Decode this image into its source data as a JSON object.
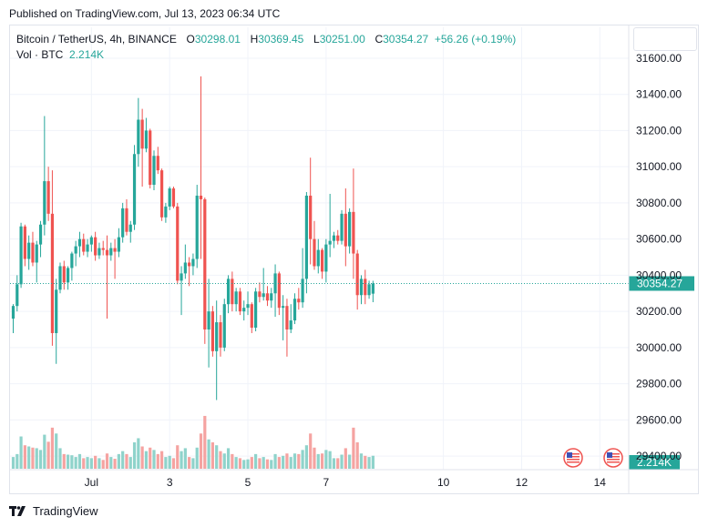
{
  "header": {
    "published": "Published on TradingView.com, Jul 13, 2023 06:34 UTC"
  },
  "legend": {
    "symbol": "Bitcoin / TetherUS, 4h, BINANCE",
    "open_label": "O",
    "open": "30298.01",
    "high_label": "H",
    "high": "30369.45",
    "low_label": "L",
    "low": "30251.00",
    "close_label": "C",
    "close": "30354.27",
    "change": "+56.26 (+0.19%)",
    "vol_label": "Vol · BTC",
    "vol_value": "2.214K"
  },
  "colors": {
    "up": "#26a69a",
    "down": "#ef5350",
    "up_volume": "#8fd3cb",
    "down_volume": "#f5a3a1"
  },
  "footer": {
    "brand": "TradingView",
    "brand_icon": "tradingview-logo-icon"
  },
  "chart_data": {
    "type": "candlestick",
    "title": "Bitcoin / TetherUS, 4h, BINANCE",
    "price_axis": {
      "ticks": [
        "31600.00",
        "31400.00",
        "31200.00",
        "31000.00",
        "30800.00",
        "30600.00",
        "30400.00",
        "30200.00",
        "30000.00",
        "29800.00",
        "29600.00",
        "29400.00"
      ],
      "range": [
        29330,
        31640
      ],
      "last_price_label": "30354.27",
      "last_price": 30354.27
    },
    "time_axis": {
      "labels": [
        "Jul",
        "3",
        "5",
        "7",
        "10",
        "12",
        "14"
      ],
      "label_candle_index": [
        20,
        40,
        60,
        80,
        110,
        130,
        150
      ]
    },
    "volume_axis": {
      "last_volume_label": "2.214K",
      "max_volume_k": 20
    },
    "event_icons": [
      "us-flag-icon",
      "us-flag-icon"
    ],
    "candles": [
      {
        "o": 30160,
        "h": 30240,
        "l": 30080,
        "c": 30230,
        "v": 2.0
      },
      {
        "o": 30230,
        "h": 30400,
        "l": 30200,
        "c": 30350,
        "v": 2.5
      },
      {
        "o": 30350,
        "h": 30690,
        "l": 30330,
        "c": 30670,
        "v": 5.5
      },
      {
        "o": 30670,
        "h": 30680,
        "l": 30450,
        "c": 30490,
        "v": 4.0
      },
      {
        "o": 30490,
        "h": 30620,
        "l": 30430,
        "c": 30580,
        "v": 3.8
      },
      {
        "o": 30580,
        "h": 30640,
        "l": 30450,
        "c": 30470,
        "v": 3.6
      },
      {
        "o": 30470,
        "h": 30590,
        "l": 30360,
        "c": 30570,
        "v": 3.5
      },
      {
        "o": 30570,
        "h": 30700,
        "l": 30500,
        "c": 30680,
        "v": 3.2
      },
      {
        "o": 30680,
        "h": 31280,
        "l": 30620,
        "c": 30920,
        "v": 5.8
      },
      {
        "o": 30920,
        "h": 31000,
        "l": 30700,
        "c": 30740,
        "v": 4.6
      },
      {
        "o": 30740,
        "h": 30980,
        "l": 30010,
        "c": 30080,
        "v": 7.0
      },
      {
        "o": 30080,
        "h": 30380,
        "l": 29910,
        "c": 30320,
        "v": 6.0
      },
      {
        "o": 30320,
        "h": 30470,
        "l": 30300,
        "c": 30450,
        "v": 3.5
      },
      {
        "o": 30450,
        "h": 30480,
        "l": 30320,
        "c": 30360,
        "v": 2.5
      },
      {
        "o": 30360,
        "h": 30450,
        "l": 30320,
        "c": 30440,
        "v": 2.4
      },
      {
        "o": 30440,
        "h": 30530,
        "l": 30370,
        "c": 30520,
        "v": 2.3
      },
      {
        "o": 30520,
        "h": 30590,
        "l": 30450,
        "c": 30560,
        "v": 2.0
      },
      {
        "o": 30560,
        "h": 30640,
        "l": 30500,
        "c": 30600,
        "v": 2.5
      },
      {
        "o": 30600,
        "h": 30630,
        "l": 30510,
        "c": 30530,
        "v": 1.8
      },
      {
        "o": 30530,
        "h": 30600,
        "l": 30500,
        "c": 30570,
        "v": 2.0
      },
      {
        "o": 30570,
        "h": 30620,
        "l": 30530,
        "c": 30610,
        "v": 1.8
      },
      {
        "o": 30610,
        "h": 30640,
        "l": 30480,
        "c": 30510,
        "v": 2.2
      },
      {
        "o": 30510,
        "h": 30580,
        "l": 30490,
        "c": 30550,
        "v": 1.8
      },
      {
        "o": 30550,
        "h": 30590,
        "l": 30510,
        "c": 30540,
        "v": 1.5
      },
      {
        "o": 30540,
        "h": 30620,
        "l": 30160,
        "c": 30510,
        "v": 2.6
      },
      {
        "o": 30510,
        "h": 30580,
        "l": 30480,
        "c": 30550,
        "v": 2.0
      },
      {
        "o": 30550,
        "h": 30600,
        "l": 30380,
        "c": 30530,
        "v": 1.7
      },
      {
        "o": 30530,
        "h": 30660,
        "l": 30500,
        "c": 30610,
        "v": 2.5
      },
      {
        "o": 30610,
        "h": 30800,
        "l": 30580,
        "c": 30770,
        "v": 3.0
      },
      {
        "o": 30770,
        "h": 30820,
        "l": 30620,
        "c": 30640,
        "v": 2.5
      },
      {
        "o": 30640,
        "h": 30700,
        "l": 30580,
        "c": 30680,
        "v": 2.0
      },
      {
        "o": 30680,
        "h": 31120,
        "l": 30650,
        "c": 31070,
        "v": 4.5
      },
      {
        "o": 31070,
        "h": 31380,
        "l": 31000,
        "c": 31260,
        "v": 5.2
      },
      {
        "o": 31260,
        "h": 31320,
        "l": 30890,
        "c": 31100,
        "v": 3.8
      },
      {
        "o": 31100,
        "h": 31270,
        "l": 31080,
        "c": 31200,
        "v": 3.0
      },
      {
        "o": 31200,
        "h": 31210,
        "l": 30880,
        "c": 30900,
        "v": 3.6
      },
      {
        "o": 30900,
        "h": 31090,
        "l": 30870,
        "c": 31060,
        "v": 3.2
      },
      {
        "o": 31060,
        "h": 31110,
        "l": 30960,
        "c": 30980,
        "v": 2.5
      },
      {
        "o": 30980,
        "h": 30990,
        "l": 30700,
        "c": 30720,
        "v": 3.0
      },
      {
        "o": 30720,
        "h": 30800,
        "l": 30690,
        "c": 30780,
        "v": 2.0
      },
      {
        "o": 30780,
        "h": 30890,
        "l": 30760,
        "c": 30880,
        "v": 2.2
      },
      {
        "o": 30880,
        "h": 30890,
        "l": 30770,
        "c": 30780,
        "v": 1.8
      },
      {
        "o": 30780,
        "h": 30800,
        "l": 30350,
        "c": 30370,
        "v": 4.0
      },
      {
        "o": 30370,
        "h": 30450,
        "l": 30180,
        "c": 30410,
        "v": 3.0
      },
      {
        "o": 30410,
        "h": 30570,
        "l": 30380,
        "c": 30470,
        "v": 3.5
      },
      {
        "o": 30470,
        "h": 30500,
        "l": 30340,
        "c": 30450,
        "v": 2.0
      },
      {
        "o": 30450,
        "h": 30520,
        "l": 30400,
        "c": 30490,
        "v": 1.8
      },
      {
        "o": 30490,
        "h": 30900,
        "l": 30440,
        "c": 30840,
        "v": 3.6
      },
      {
        "o": 30840,
        "h": 31500,
        "l": 30490,
        "c": 30820,
        "v": 6.0
      },
      {
        "o": 30820,
        "h": 30830,
        "l": 30020,
        "c": 30100,
        "v": 9.0
      },
      {
        "o": 30100,
        "h": 30380,
        "l": 29890,
        "c": 30200,
        "v": 5.0
      },
      {
        "o": 30200,
        "h": 30230,
        "l": 29950,
        "c": 29980,
        "v": 4.5
      },
      {
        "o": 29980,
        "h": 30260,
        "l": 29710,
        "c": 30140,
        "v": 4.0
      },
      {
        "o": 30140,
        "h": 30180,
        "l": 29950,
        "c": 30000,
        "v": 3.0
      },
      {
        "o": 30000,
        "h": 30270,
        "l": 29980,
        "c": 30240,
        "v": 2.6
      },
      {
        "o": 30240,
        "h": 30400,
        "l": 30190,
        "c": 30380,
        "v": 3.5
      },
      {
        "o": 30380,
        "h": 30420,
        "l": 30200,
        "c": 30240,
        "v": 2.5
      },
      {
        "o": 30240,
        "h": 30330,
        "l": 30200,
        "c": 30310,
        "v": 2.0
      },
      {
        "o": 30310,
        "h": 30330,
        "l": 30180,
        "c": 30200,
        "v": 1.8
      },
      {
        "o": 30200,
        "h": 30260,
        "l": 30150,
        "c": 30220,
        "v": 1.5
      },
      {
        "o": 30220,
        "h": 30310,
        "l": 30180,
        "c": 30240,
        "v": 1.6
      },
      {
        "o": 30240,
        "h": 30250,
        "l": 30080,
        "c": 30110,
        "v": 2.0
      },
      {
        "o": 30110,
        "h": 30330,
        "l": 30090,
        "c": 30310,
        "v": 2.5
      },
      {
        "o": 30310,
        "h": 30360,
        "l": 30250,
        "c": 30280,
        "v": 1.8
      },
      {
        "o": 30280,
        "h": 30440,
        "l": 30260,
        "c": 30300,
        "v": 2.0
      },
      {
        "o": 30300,
        "h": 30340,
        "l": 30230,
        "c": 30260,
        "v": 1.6
      },
      {
        "o": 30260,
        "h": 30330,
        "l": 30220,
        "c": 30300,
        "v": 1.5
      },
      {
        "o": 30300,
        "h": 30460,
        "l": 30170,
        "c": 30410,
        "v": 2.5
      },
      {
        "o": 30410,
        "h": 30420,
        "l": 30180,
        "c": 30220,
        "v": 2.0
      },
      {
        "o": 30220,
        "h": 30290,
        "l": 30040,
        "c": 30230,
        "v": 2.2
      },
      {
        "o": 30230,
        "h": 30270,
        "l": 29950,
        "c": 30100,
        "v": 2.6
      },
      {
        "o": 30100,
        "h": 30240,
        "l": 30080,
        "c": 30150,
        "v": 2.0
      },
      {
        "o": 30150,
        "h": 30300,
        "l": 30130,
        "c": 30270,
        "v": 2.6
      },
      {
        "o": 30270,
        "h": 30330,
        "l": 30210,
        "c": 30250,
        "v": 2.5
      },
      {
        "o": 30250,
        "h": 30550,
        "l": 30220,
        "c": 30380,
        "v": 3.2
      },
      {
        "o": 30380,
        "h": 30860,
        "l": 30300,
        "c": 30840,
        "v": 4.0
      },
      {
        "o": 30840,
        "h": 31050,
        "l": 30460,
        "c": 30600,
        "v": 6.0
      },
      {
        "o": 30600,
        "h": 30700,
        "l": 30430,
        "c": 30450,
        "v": 3.6
      },
      {
        "o": 30450,
        "h": 30600,
        "l": 30410,
        "c": 30540,
        "v": 2.5
      },
      {
        "o": 30540,
        "h": 30550,
        "l": 30380,
        "c": 30420,
        "v": 2.6
      },
      {
        "o": 30420,
        "h": 30600,
        "l": 30360,
        "c": 30570,
        "v": 3.2
      },
      {
        "o": 30570,
        "h": 30850,
        "l": 30500,
        "c": 30590,
        "v": 3.0
      },
      {
        "o": 30590,
        "h": 30640,
        "l": 30550,
        "c": 30620,
        "v": 1.8
      },
      {
        "o": 30620,
        "h": 30650,
        "l": 30570,
        "c": 30590,
        "v": 1.8
      },
      {
        "o": 30590,
        "h": 30760,
        "l": 30570,
        "c": 30740,
        "v": 2.4
      },
      {
        "o": 30740,
        "h": 30880,
        "l": 30450,
        "c": 30560,
        "v": 3.5
      },
      {
        "o": 30560,
        "h": 30770,
        "l": 30520,
        "c": 30750,
        "v": 2.4
      },
      {
        "o": 30750,
        "h": 30990,
        "l": 30380,
        "c": 30520,
        "v": 7.0
      },
      {
        "o": 30520,
        "h": 30540,
        "l": 30210,
        "c": 30290,
        "v": 4.5
      },
      {
        "o": 30290,
        "h": 30400,
        "l": 30240,
        "c": 30380,
        "v": 2.6
      },
      {
        "o": 30380,
        "h": 30430,
        "l": 30240,
        "c": 30290,
        "v": 2.2
      },
      {
        "o": 30290,
        "h": 30370,
        "l": 30270,
        "c": 30350,
        "v": 2.0
      },
      {
        "o": 30298.01,
        "h": 30369.45,
        "l": 30251.0,
        "c": 30354.27,
        "v": 2.214
      }
    ]
  }
}
